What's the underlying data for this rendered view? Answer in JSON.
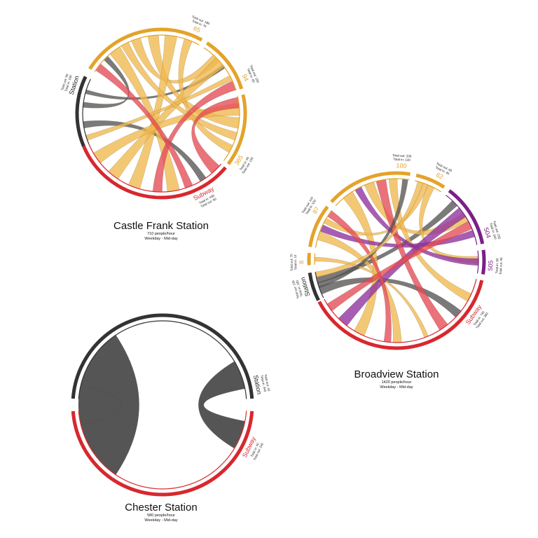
{
  "palette": {
    "subway": "#d7282f",
    "station": "#333333",
    "bus_orange": "#e3a32b",
    "bus_purple": "#7a1f86",
    "fill_subway": "#e44a55",
    "fill_station": "#555555",
    "fill_orange": "#f0b94e",
    "fill_purple": "#8e2f9e"
  },
  "diagrams": [
    {
      "id": "castle-frank",
      "title": "Castle Frank Station",
      "rate": "710 people/hour",
      "period": "Weekday - Mid-day",
      "segments": [
        {
          "label": "Station",
          "totals": [
            "Total in: 100",
            "Total out: 60"
          ],
          "kind": "station"
        },
        {
          "label": "65",
          "totals": [
            "Total in: 70",
            "Total out: 180"
          ],
          "kind": "orange"
        },
        {
          "label": "94",
          "totals": [
            "Total in: 60",
            "Total out: 150"
          ],
          "kind": "orange"
        },
        {
          "label": "365",
          "totals": [
            "Total in: 60",
            "Total out: 130"
          ],
          "kind": "orange"
        },
        {
          "label": "Subway",
          "totals": [
            "Total in: 400",
            "Total out: 90"
          ],
          "kind": "subway"
        }
      ]
    },
    {
      "id": "broadview",
      "title": "Broadview Station",
      "rate": "1420 people/hour",
      "period": "Weekday - Mid-day",
      "segments": [
        {
          "label": "Station",
          "totals": [
            "Total in: 180",
            "Total out: 130"
          ],
          "kind": "station"
        },
        {
          "label": "8",
          "totals": [
            "Total in: 10",
            "Total out: 70"
          ],
          "kind": "orange"
        },
        {
          "label": "87",
          "totals": [
            "Total in: 100",
            "Total out: 140"
          ],
          "kind": "orange"
        },
        {
          "label": "100",
          "totals": [
            "Total in: 120",
            "Total out: 200"
          ],
          "kind": "orange"
        },
        {
          "label": "62",
          "totals": [
            "Total in: 40",
            "Total out: 60"
          ],
          "kind": "orange"
        },
        {
          "label": "504",
          "totals": [
            "Total in: 160",
            "Total out: 230"
          ],
          "kind": "purple"
        },
        {
          "label": "505",
          "totals": [
            "Total in: 80",
            "Total out: 90"
          ],
          "kind": "purple"
        },
        {
          "label": "Subway",
          "totals": [
            "Total in: 730",
            "Total out: 380"
          ],
          "kind": "subway"
        }
      ]
    },
    {
      "id": "chester",
      "title": "Chester Station",
      "rate": "580 people/hour",
      "period": "Weekday - Mid-day",
      "segments": [
        {
          "label": "Station",
          "totals": [
            "Total in: 340",
            "Total out: 40"
          ],
          "kind": "station"
        },
        {
          "label": "Subway",
          "totals": [
            "Total in: 40",
            "Total out: 240"
          ],
          "kind": "subway"
        }
      ]
    }
  ]
}
